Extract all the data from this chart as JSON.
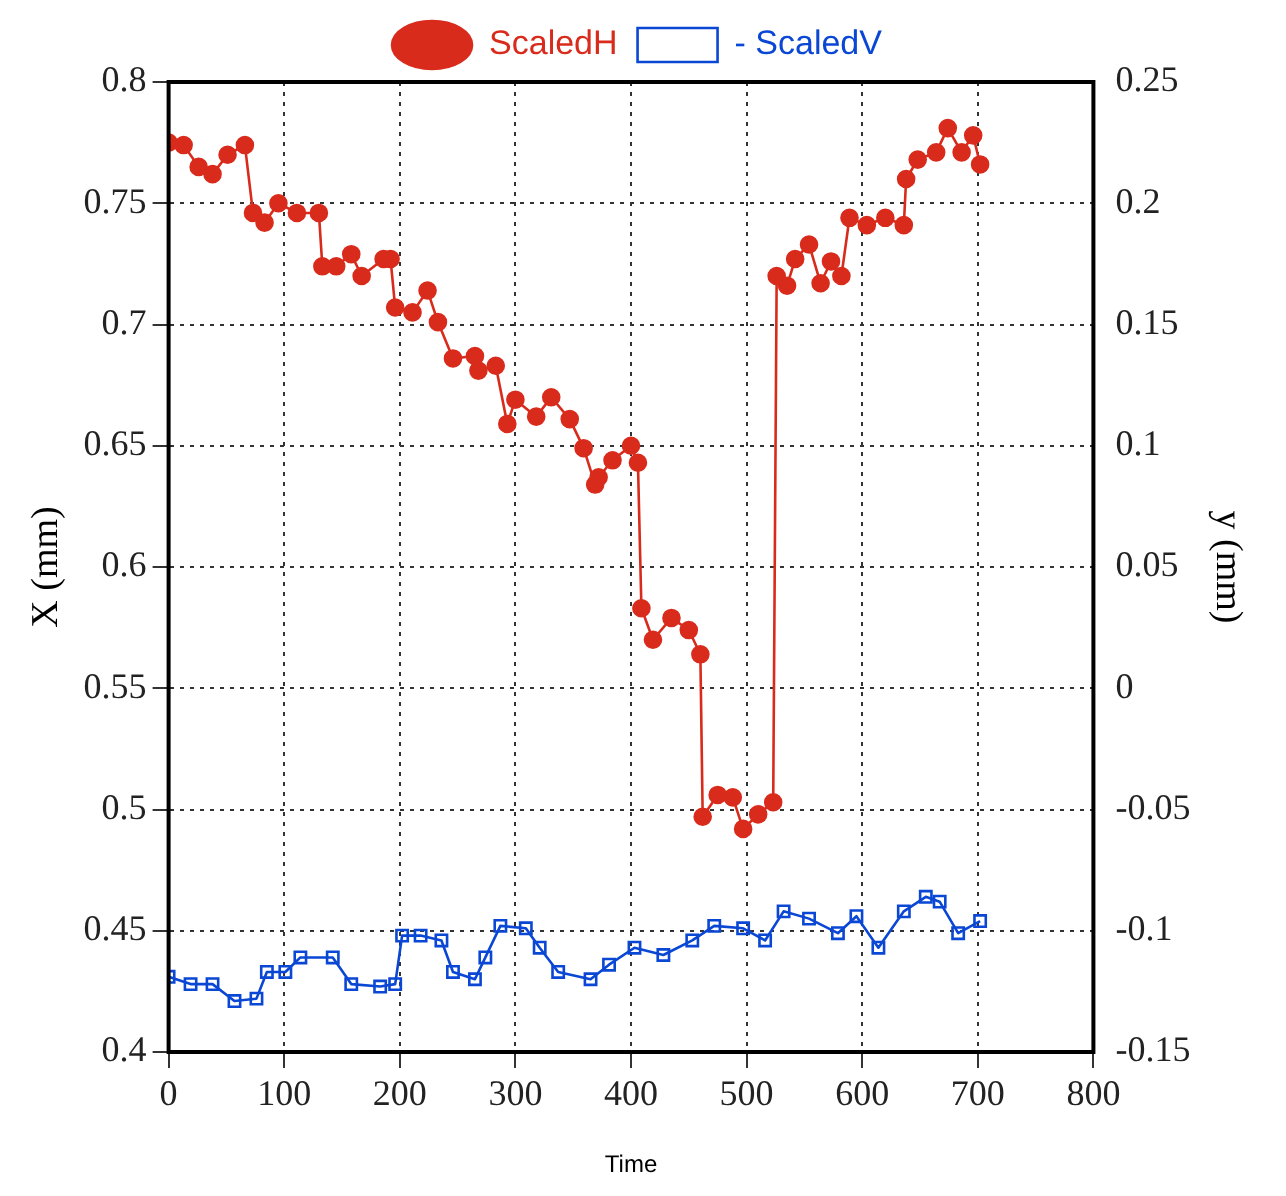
{
  "chart_data": {
    "type": "line",
    "xlabel": "Time",
    "ylabel": "X (mm)",
    "y2label": "y (mm)",
    "xlim": [
      0,
      800
    ],
    "xticks": [
      0,
      100,
      200,
      300,
      400,
      500,
      600,
      700,
      800
    ],
    "ylim": [
      0.4,
      0.8
    ],
    "yticks": [
      0.4,
      0.45,
      0.5,
      0.55,
      0.6,
      0.65,
      0.7,
      0.75,
      0.8
    ],
    "y2lim": [
      -0.15,
      0.25
    ],
    "y2ticks": [
      -0.15,
      -0.1,
      -0.05,
      0,
      0.05,
      0.1,
      0.15,
      0.2,
      0.25
    ],
    "grid": true,
    "legend": "top",
    "line_style": "solid",
    "series": [
      {
        "name": "ScaledH",
        "color": "#d92b1c",
        "marker": "circle",
        "x": [
          0,
          13,
          26,
          38,
          51,
          66,
          73,
          83,
          95,
          111,
          130,
          133,
          145,
          158,
          167,
          186,
          192,
          196,
          211,
          224,
          233,
          246,
          265,
          268,
          283,
          293,
          300,
          318,
          331,
          347,
          359,
          369,
          372,
          384,
          400,
          406,
          409,
          419,
          435,
          450,
          460,
          462,
          475,
          488,
          497,
          510,
          523,
          526,
          535,
          542,
          554,
          564,
          573,
          582,
          589,
          604,
          620,
          636,
          638,
          648,
          664,
          674,
          686,
          696,
          702
        ],
        "values": [
          0.775,
          0.774,
          0.765,
          0.762,
          0.77,
          0.774,
          0.746,
          0.742,
          0.75,
          0.746,
          0.746,
          0.724,
          0.724,
          0.729,
          0.72,
          0.727,
          0.727,
          0.707,
          0.705,
          0.714,
          0.701,
          0.686,
          0.687,
          0.681,
          0.683,
          0.659,
          0.669,
          0.662,
          0.67,
          0.661,
          0.649,
          0.634,
          0.637,
          0.644,
          0.65,
          0.643,
          0.583,
          0.57,
          0.579,
          0.574,
          0.564,
          0.497,
          0.506,
          0.505,
          0.492,
          0.498,
          0.503,
          0.72,
          0.716,
          0.727,
          0.733,
          0.717,
          0.726,
          0.72,
          0.744,
          0.741,
          0.744,
          0.741,
          0.76,
          0.768,
          0.771,
          0.781,
          0.771,
          0.778,
          0.766
        ]
      },
      {
        "name": "- ScaledV",
        "color": "#0a47d4",
        "marker": "square",
        "axis": "y2",
        "x": [
          0,
          19,
          38,
          57,
          76,
          85,
          101,
          114,
          142,
          158,
          183,
          196,
          202,
          218,
          236,
          246,
          265,
          274,
          287,
          309,
          321,
          337,
          365,
          381,
          403,
          428,
          453,
          472,
          497,
          516,
          532,
          554,
          579,
          595,
          614,
          636,
          655,
          667,
          683,
          702
        ],
        "values": [
          -0.119,
          -0.122,
          -0.122,
          -0.129,
          -0.128,
          -0.117,
          -0.117,
          -0.111,
          -0.111,
          -0.122,
          -0.123,
          -0.122,
          -0.102,
          -0.102,
          -0.104,
          -0.117,
          -0.12,
          -0.111,
          -0.098,
          -0.099,
          -0.107,
          -0.117,
          -0.12,
          -0.114,
          -0.107,
          -0.11,
          -0.104,
          -0.098,
          -0.099,
          -0.104,
          -0.092,
          -0.095,
          -0.101,
          -0.094,
          -0.107,
          -0.092,
          -0.086,
          -0.088,
          -0.101,
          -0.096
        ]
      }
    ]
  }
}
